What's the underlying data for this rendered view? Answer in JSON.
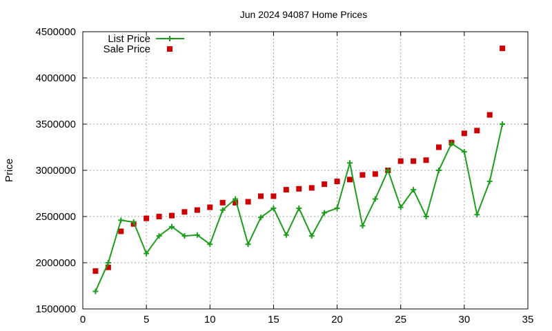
{
  "chart_data": {
    "type": "line",
    "title": "Jun 2024 94087 Home Prices",
    "xlabel": "",
    "ylabel": "Price",
    "xlim": [
      0,
      35
    ],
    "ylim": [
      1500000,
      4500000
    ],
    "x_ticks": [
      "0",
      "5",
      "10",
      "15",
      "20",
      "25",
      "30",
      "35"
    ],
    "y_ticks": [
      "1500000",
      "2000000",
      "2500000",
      "3000000",
      "3500000",
      "4000000",
      "4500000"
    ],
    "grid": true,
    "legend_position": "top-left",
    "series": [
      {
        "name": "List Price",
        "style": "line+cross",
        "color": "#1a9e1a",
        "x": [
          1,
          2,
          3,
          4,
          5,
          6,
          7,
          8,
          9,
          10,
          11,
          12,
          13,
          14,
          15,
          16,
          17,
          18,
          19,
          20,
          21,
          22,
          23,
          24,
          25,
          26,
          27,
          28,
          29,
          30,
          31,
          32,
          33
        ],
        "values": [
          1690000,
          2000000,
          2460000,
          2440000,
          2100000,
          2290000,
          2390000,
          2290000,
          2300000,
          2200000,
          2570000,
          2690000,
          2200000,
          2490000,
          2590000,
          2300000,
          2590000,
          2290000,
          2540000,
          2590000,
          3080000,
          2400000,
          2690000,
          3000000,
          2600000,
          2790000,
          2500000,
          3000000,
          3290000,
          3200000,
          2520000,
          2880000,
          3500000
        ]
      },
      {
        "name": "Sale Price",
        "style": "square-markers",
        "color": "#cc0000",
        "x": [
          1,
          2,
          3,
          4,
          5,
          6,
          7,
          8,
          9,
          10,
          11,
          12,
          13,
          14,
          15,
          16,
          17,
          18,
          19,
          20,
          21,
          22,
          23,
          24,
          25,
          26,
          27,
          28,
          29,
          30,
          31,
          32,
          33
        ],
        "values": [
          1910000,
          1950000,
          2340000,
          2420000,
          2480000,
          2500000,
          2510000,
          2550000,
          2570000,
          2600000,
          2650000,
          2650000,
          2660000,
          2720000,
          2720000,
          2790000,
          2800000,
          2810000,
          2850000,
          2880000,
          2900000,
          2950000,
          2960000,
          3000000,
          3100000,
          3100000,
          3110000,
          3250000,
          3300000,
          3400000,
          3430000,
          3600000,
          4320000
        ]
      }
    ]
  }
}
